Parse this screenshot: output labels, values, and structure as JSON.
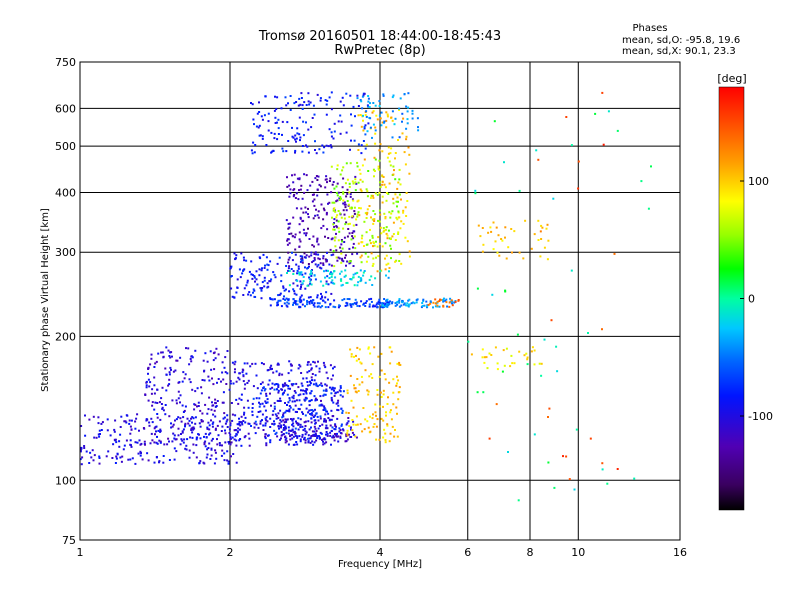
{
  "chart_data": {
    "type": "scatter",
    "title": "Tromsø 20160501 18:44:00-18:45:43",
    "subtitle": "RwPretec (8p)",
    "xlabel": "Frequency [MHz]",
    "ylabel": "Stationary phase Virtual Height [km]",
    "x_scale": "log",
    "y_scale": "log",
    "xlim": [
      1,
      16
    ],
    "ylim": [
      75,
      750
    ],
    "x_ticks": [
      1,
      2,
      4,
      6,
      8,
      10,
      16
    ],
    "x_tick_labels": [
      "1",
      "2",
      "4",
      "6",
      "8",
      "10",
      "16"
    ],
    "y_ticks": [
      75,
      100,
      200,
      300,
      400,
      500,
      600,
      750
    ],
    "y_tick_labels": [
      "75",
      "100",
      "200",
      "300",
      "400",
      "500",
      "600",
      "750"
    ],
    "grid": true,
    "stats": {
      "header": "Phases",
      "line_O": "mean, sd,O: -95.8, 19.6",
      "line_X": "mean, sd,X:  90.1, 23.3"
    },
    "colorbar": {
      "label": "[deg]",
      "range": [
        -180,
        180
      ],
      "ticks": [
        100,
        0,
        -100
      ],
      "tick_labels": [
        "100",
        "0",
        "-100"
      ]
    },
    "traces": [
      {
        "f_range": [
          1.0,
          2.1
        ],
        "h_range": [
          108,
          138
        ],
        "phase": -100,
        "n": 260
      },
      {
        "f_range": [
          1.35,
          2.0
        ],
        "h_range": [
          118,
          190
        ],
        "phase": -105,
        "n": 220
      },
      {
        "f_range": [
          2.0,
          3.3
        ],
        "h_range": [
          118,
          178
        ],
        "phase": -100,
        "n": 320
      },
      {
        "f_range": [
          2.2,
          3.4
        ],
        "h_range": [
          122,
          160
        ],
        "phase": -80,
        "n": 200
      },
      {
        "f_range": [
          2.5,
          3.6
        ],
        "h_range": [
          120,
          135
        ],
        "phase": -110,
        "n": 120
      },
      {
        "f_range": [
          3.4,
          4.4
        ],
        "h_range": [
          120,
          190
        ],
        "phase": 100,
        "n": 130
      },
      {
        "f_range": [
          2.0,
          3.2
        ],
        "h_range": [
          240,
          300
        ],
        "phase": -85,
        "n": 180
      },
      {
        "f_range": [
          2.6,
          3.6
        ],
        "h_range": [
          280,
          440
        ],
        "phase": -125,
        "n": 230
      },
      {
        "f_range": [
          3.2,
          4.4
        ],
        "h_range": [
          280,
          470
        ],
        "phase": 60,
        "n": 180
      },
      {
        "f_range": [
          3.6,
          4.6
        ],
        "h_range": [
          270,
          600
        ],
        "phase": 100,
        "n": 140
      },
      {
        "f_range": [
          2.4,
          4.2
        ],
        "h_range": [
          230,
          240
        ],
        "phase": -70,
        "n": 140
      },
      {
        "f_range": [
          4.0,
          5.7
        ],
        "h_range": [
          230,
          240
        ],
        "phase": -40,
        "n": 80
      },
      {
        "f_range": [
          5.0,
          5.8
        ],
        "h_range": [
          230,
          240
        ],
        "phase": 140,
        "n": 20
      },
      {
        "f_range": [
          2.2,
          3.8
        ],
        "h_range": [
          480,
          650
        ],
        "phase": -85,
        "n": 160
      },
      {
        "f_range": [
          3.6,
          4.8
        ],
        "h_range": [
          520,
          650
        ],
        "phase": -40,
        "n": 60
      },
      {
        "f_range": [
          2.6,
          4.2
        ],
        "h_range": [
          255,
          275
        ],
        "phase": -20,
        "n": 80
      },
      {
        "f_range": [
          6.2,
          8.8
        ],
        "h_range": [
          290,
          350
        ],
        "phase": 100,
        "n": 40
      },
      {
        "f_range": [
          6.0,
          8.5
        ],
        "h_range": [
          170,
          190
        ],
        "phase": 90,
        "n": 30
      },
      {
        "f_range": [
          6.0,
          14.0
        ],
        "h_range": [
          90,
          650
        ],
        "phase": 0,
        "n": 40
      },
      {
        "f_range": [
          6.2,
          12.0
        ],
        "h_range": [
          100,
          650
        ],
        "phase": 150,
        "n": 20
      }
    ]
  }
}
